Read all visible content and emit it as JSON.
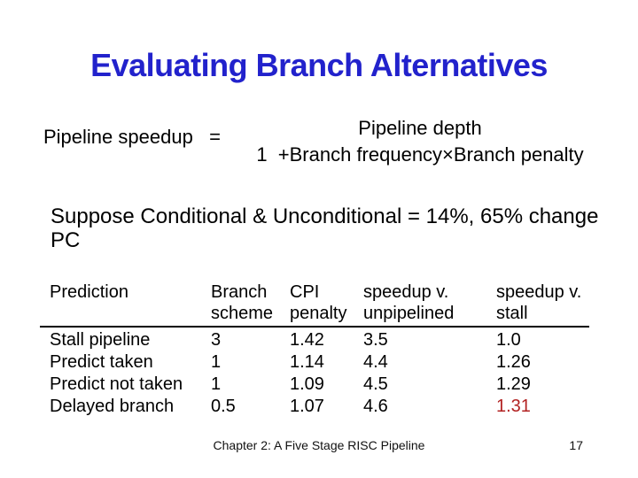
{
  "slide": {
    "title": "Evaluating Branch Alternatives",
    "title_color": "#2222CC",
    "formula": {
      "lhs": "Pipeline speedup   =",
      "numerator": "Pipeline depth",
      "denominator": "1  +Branch frequency×Branch penalty"
    },
    "statement": "Suppose Conditional & Unconditional = 14%, 65% change PC",
    "table": {
      "headers": [
        {
          "line1": "Prediction",
          "line2": ""
        },
        {
          "line1": "Branch",
          "line2": "scheme"
        },
        {
          "line1": "CPI",
          "line2": "penalty"
        },
        {
          "line1": "speedup v.",
          "line2": "unpipelined"
        },
        {
          "line1": "speedup v.",
          "line2": "stall"
        }
      ],
      "rows": [
        {
          "prediction": "Stall pipeline",
          "branch_scheme": "3",
          "cpi_penalty": "1.42",
          "speedup_unpipelined": "3.5",
          "speedup_stall": "1.0"
        },
        {
          "prediction": "Predict taken",
          "branch_scheme": "1",
          "cpi_penalty": "1.14",
          "speedup_unpipelined": "4.4",
          "speedup_stall": "1.26"
        },
        {
          "prediction": "Predict not taken",
          "branch_scheme": "1",
          "cpi_penalty": "1.09",
          "speedup_unpipelined": "4.5",
          "speedup_stall": "1.29"
        },
        {
          "prediction": "Delayed branch",
          "branch_scheme": "0.5",
          "cpi_penalty": "1.07",
          "speedup_unpipelined": "4.6",
          "speedup_stall": "1.31"
        }
      ],
      "highlight_color": "#B22222"
    },
    "footer": {
      "chapter": "Chapter 2: A Five Stage RISC Pipeline",
      "page": "17"
    }
  }
}
